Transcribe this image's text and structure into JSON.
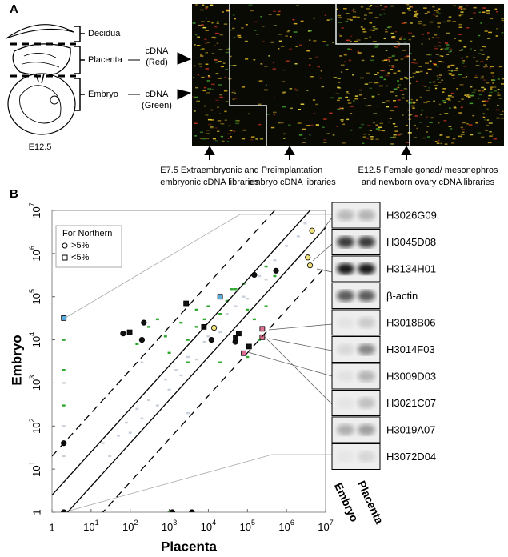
{
  "panel_a": {
    "label": "A",
    "regions": [
      "Decidua",
      "Placenta",
      "Embryo"
    ],
    "stage": "E12.5",
    "probes": [
      [
        "cDNA",
        "(Red)"
      ],
      [
        "cDNA",
        "(Green)"
      ]
    ],
    "libraries": [
      [
        "E7.5 Extraembryonic and",
        "embryonic cDNA libraries"
      ],
      [
        "Preimplantation",
        "embryo cDNA libraries"
      ],
      [
        "E12.5 Female gonad/ mesonephros",
        "and newborn ovary cDNA libraries"
      ]
    ]
  },
  "panel_b": {
    "label": "B"
  },
  "blots": {
    "genes": [
      "H3026G09",
      "H3045D08",
      "H3134H01",
      "β-actin",
      "H3018B06",
      "H3014F03",
      "H3009D03",
      "H3021C07",
      "H3019A07",
      "H3072D04"
    ],
    "lanes": [
      "Embryo",
      "Placenta"
    ]
  },
  "chart_data": {
    "type": "scatter",
    "x_label": "Placenta",
    "y_label": "Embryo",
    "xscale": "log",
    "yscale": "log",
    "xlim": [
      1,
      10000000
    ],
    "ylim": [
      1,
      10000000
    ],
    "xticks": [
      1,
      {
        "value": 10,
        "label": "10",
        "sup": "1"
      },
      {
        "value": 100,
        "label": "10",
        "sup": "2"
      },
      {
        "value": 1000,
        "label": "10",
        "sup": "3"
      },
      {
        "value": 10000,
        "label": "10",
        "sup": "4"
      },
      {
        "value": 100000,
        "label": "10",
        "sup": "5"
      },
      {
        "value": 1000000,
        "label": "10",
        "sup": "6"
      },
      {
        "value": 10000000,
        "label": "10",
        "sup": "7"
      }
    ],
    "yticks": [
      1,
      {
        "value": 10,
        "label": "10",
        "sup": "1"
      },
      {
        "value": 100,
        "label": "10",
        "sup": "2"
      },
      {
        "value": 1000,
        "label": "10",
        "sup": "3"
      },
      {
        "value": 10000,
        "label": "10",
        "sup": "4"
      },
      {
        "value": 100000,
        "label": "10",
        "sup": "5"
      },
      {
        "value": 1000000,
        "label": "10",
        "sup": "6"
      },
      {
        "value": 10000000,
        "label": "10",
        "sup": "7"
      }
    ],
    "legend": {
      "title": "For Northern",
      "corner": "upper left",
      "entries": [
        {
          "marker": "circle",
          "label": ":>5%"
        },
        {
          "marker": "square",
          "label": ":<5%"
        }
      ]
    },
    "reference_lines": [
      {
        "ratio": 20,
        "dashed": true
      },
      {
        "ratio": 2.5,
        "dashed": false
      },
      {
        "ratio": 0.4,
        "dashed": false
      },
      {
        "ratio": 0.05,
        "dashed": true
      }
    ],
    "series": [
      {
        "marker": "dash",
        "color": "#c9d1dc",
        "x": [
          20,
          30,
          50,
          80,
          100,
          150,
          200,
          300,
          500,
          800,
          1000,
          1500,
          2000,
          3000,
          5000,
          8000,
          10000,
          15000,
          20000,
          30000,
          50000,
          80000,
          100000,
          200000,
          300000,
          500000,
          1000000,
          2000000,
          3000000,
          2,
          2,
          2,
          2,
          2,
          30,
          100,
          1000,
          10000,
          200,
          3000
        ],
        "values": [
          40,
          20,
          60,
          120,
          70,
          250,
          150,
          400,
          300,
          1200,
          700,
          2000,
          1500,
          4000,
          3500,
          9000,
          12000,
          20000,
          15000,
          40000,
          60000,
          100000,
          90000,
          300000,
          250000,
          700000,
          1500000,
          2500000,
          5000000,
          5,
          20,
          100,
          1000,
          10000,
          1,
          1,
          1,
          1,
          3000,
          200
        ]
      },
      {
        "marker": "dash",
        "color": "#2ea82e",
        "x": [
          100,
          150,
          300,
          500,
          800,
          1000,
          2000,
          3000,
          5000,
          8000,
          10000,
          20000,
          30000,
          50000,
          80000,
          100000,
          150000,
          200000,
          300000,
          500000,
          2,
          2,
          2,
          1000,
          20000,
          100000,
          5000,
          40000,
          300000,
          3000
        ],
        "values": [
          15000,
          8000,
          20000,
          30000,
          12000,
          5000,
          25000,
          10000,
          20000,
          30000,
          60000,
          40000,
          80000,
          150000,
          200000,
          50000,
          30000,
          10000,
          60000,
          300000,
          2000,
          300,
          10000,
          1,
          3000,
          4000,
          50000,
          150000,
          500000,
          3000
        ]
      },
      {
        "marker": "circle",
        "color": "#111111",
        "x": [
          150000,
          540000,
          224,
          66,
          200,
          12000,
          49000,
          2,
          2,
          1200,
          3800
        ],
        "values": [
          320000,
          400000,
          25000,
          14000,
          10000,
          10000,
          9000,
          40,
          1,
          1,
          1
        ]
      },
      {
        "marker": "square",
        "color": "#111111",
        "x": [
          97,
          2700,
          7700,
          50000,
          60000,
          110000
        ],
        "values": [
          15000,
          70000,
          20000,
          11000,
          14000,
          7000
        ]
      },
      {
        "marker": "circle",
        "color": "#f2e27a",
        "x": [
          4500000,
          3500000,
          4000000,
          14000
        ],
        "values": [
          3400000,
          810000,
          530000,
          19000
        ]
      },
      {
        "marker": "square",
        "color": "#5aaadd",
        "x": [
          2,
          20000
        ],
        "values": [
          32000,
          100000
        ]
      },
      {
        "marker": "square",
        "color": "#e07090",
        "x": [
          240000,
          240000,
          80000
        ],
        "values": [
          18000,
          11500,
          4900
        ]
      }
    ]
  }
}
